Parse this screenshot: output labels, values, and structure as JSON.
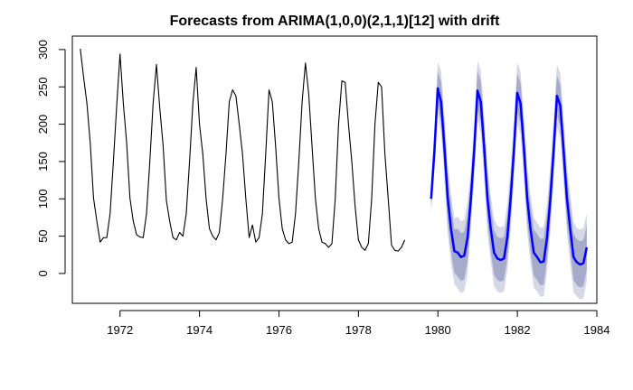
{
  "chart_data": {
    "type": "line",
    "title": "Forecasts from ARIMA(1,0,0)(2,1,1)[12] with drift",
    "xlabel": "",
    "ylabel": "",
    "xlim": [
      1970.8,
      1984.0
    ],
    "ylim": [
      -40,
      318
    ],
    "xticks": [
      1972,
      1974,
      1976,
      1978,
      1980,
      1982,
      1984
    ],
    "yticks": [
      0,
      50,
      100,
      150,
      200,
      250,
      300
    ],
    "grid": false,
    "legend": "none",
    "colors": {
      "observed": "#000000",
      "forecast": "#0000ff",
      "band80": "#a6abcc",
      "band95": "#d6d8e6"
    },
    "series": [
      {
        "kind": "observed",
        "x_start": 1971.0,
        "x_step": 0.08333,
        "values": [
          301,
          263,
          228,
          175,
          101,
          70,
          42,
          48,
          48,
          80,
          150,
          225,
          294,
          228,
          175,
          101,
          70,
          52,
          49,
          48,
          80,
          150,
          228,
          280,
          222,
          172,
          98,
          70,
          48,
          45,
          55,
          50,
          80,
          150,
          228,
          276,
          200,
          160,
          100,
          60,
          50,
          45,
          55,
          100,
          160,
          230,
          246,
          238,
          200,
          160,
          100,
          48,
          65,
          42,
          48,
          80,
          160,
          246,
          230,
          170,
          101,
          60,
          45,
          40,
          42,
          80,
          150,
          230,
          282,
          240,
          170,
          101,
          60,
          42,
          40,
          35,
          40,
          100,
          200,
          258,
          256,
          200,
          150,
          90,
          45,
          35,
          31,
          40,
          100,
          200,
          256,
          250,
          160,
          100,
          38,
          31,
          30,
          35,
          45
        ]
      },
      {
        "kind": "forecast",
        "x_start": 1979.83,
        "x_step": 0.08333,
        "values": [
          100,
          165,
          248,
          230,
          170,
          101,
          60,
          30,
          28,
          22,
          24,
          48,
          100,
          165,
          245,
          230,
          170,
          101,
          60,
          28,
          20,
          18,
          20,
          48,
          100,
          165,
          242,
          228,
          170,
          101,
          60,
          28,
          22,
          15,
          16,
          48,
          100,
          165,
          238,
          225,
          165,
          101,
          60,
          22,
          15,
          12,
          14,
          35
        ],
        "lower80": [
          88,
          145,
          225,
          203,
          140,
          70,
          29,
          1,
          -4,
          -10,
          -8,
          16,
          74,
          140,
          219,
          203,
          142,
          71,
          30,
          -2,
          -9,
          -11,
          -9,
          19,
          72,
          140,
          216,
          201,
          142,
          71,
          30,
          -3,
          -9,
          -16,
          -15,
          18,
          70,
          138,
          211,
          197,
          136,
          70,
          30,
          -9,
          -16,
          -19,
          -17,
          5
        ],
        "upper80": [
          112,
          185,
          270,
          257,
          200,
          132,
          91,
          59,
          60,
          54,
          56,
          80,
          126,
          190,
          271,
          257,
          198,
          131,
          90,
          58,
          49,
          47,
          49,
          77,
          128,
          190,
          268,
          255,
          198,
          131,
          90,
          59,
          53,
          46,
          47,
          78,
          130,
          192,
          265,
          253,
          194,
          132,
          90,
          53,
          46,
          43,
          45,
          65
        ],
        "lower95": [
          82,
          135,
          213,
          189,
          125,
          54,
          13,
          -14,
          -20,
          -26,
          -24,
          0,
          61,
          127,
          205,
          188,
          126,
          55,
          15,
          -17,
          -24,
          -26,
          -24,
          4,
          56,
          125,
          201,
          186,
          126,
          55,
          14,
          -19,
          -24,
          -31,
          -31,
          3,
          55,
          123,
          196,
          182,
          120,
          55,
          14,
          -25,
          -31,
          -35,
          -33,
          -11
        ],
        "upper95": [
          118,
          195,
          283,
          271,
          215,
          148,
          107,
          74,
          76,
          70,
          72,
          96,
          139,
          203,
          285,
          272,
          214,
          147,
          105,
          73,
          64,
          62,
          64,
          92,
          144,
          205,
          283,
          270,
          214,
          147,
          106,
          75,
          68,
          61,
          63,
          93,
          145,
          207,
          280,
          268,
          210,
          147,
          106,
          69,
          61,
          59,
          61,
          81
        ]
      }
    ]
  }
}
